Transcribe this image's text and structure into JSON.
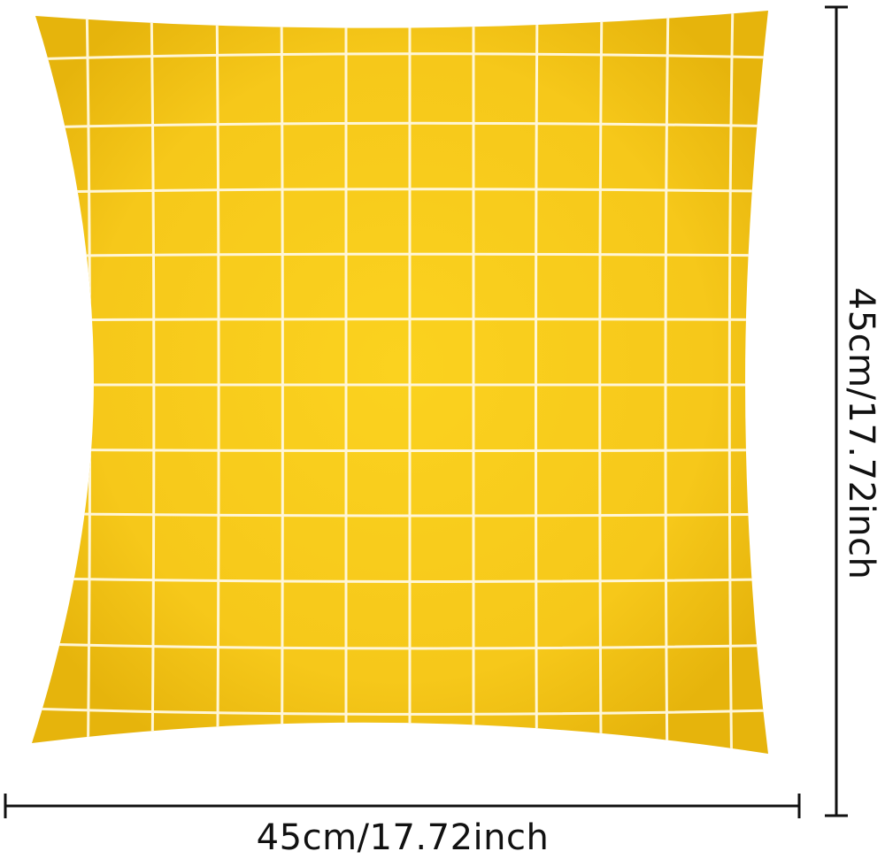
{
  "product": {
    "name": "yellow-grid-pillow-cover",
    "colors": {
      "fabric": "#f7cc1b",
      "fabric_shadow": "#e9b70a",
      "grid_lines": "#fff6d6",
      "dimension_lines": "#111111"
    },
    "grid": {
      "columns": 11,
      "rows": 11
    }
  },
  "dimensions": {
    "width_label": "45cm/17.72inch",
    "height_label": "45cm/17.72inch"
  }
}
